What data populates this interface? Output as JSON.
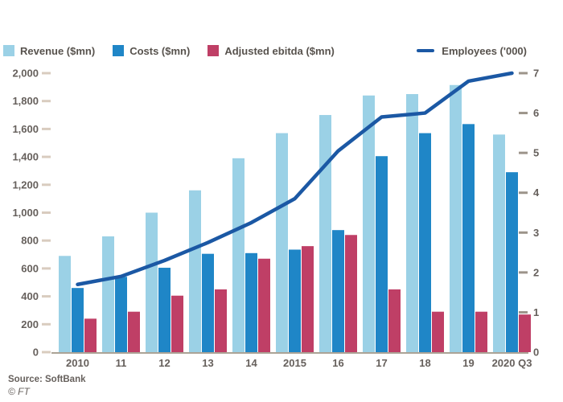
{
  "chart_data": {
    "type": "combo-bar-line",
    "categories": [
      "2010",
      "11",
      "12",
      "13",
      "14",
      "2015",
      "16",
      "17",
      "18",
      "19",
      "2020 Q3"
    ],
    "bar_series": [
      {
        "name": "Revenue ($mn)",
        "color": "#9bd1e6",
        "values": [
          690,
          830,
          1000,
          1160,
          1390,
          1570,
          1700,
          1840,
          1850,
          1915,
          1560
        ]
      },
      {
        "name": "Costs ($mn)",
        "color": "#1f86c7",
        "values": [
          460,
          540,
          605,
          705,
          710,
          735,
          875,
          1405,
          1570,
          1635,
          1290
        ]
      },
      {
        "name": "Adjusted ebitda ($mn)",
        "color": "#bf3f66",
        "values": [
          240,
          290,
          405,
          450,
          670,
          760,
          840,
          450,
          290,
          290,
          270
        ]
      }
    ],
    "line_series": {
      "name": "Employees ('000)",
      "color": "#1b58a4",
      "axis": "right",
      "values": [
        1.7,
        1.9,
        2.3,
        2.75,
        3.25,
        3.85,
        5.05,
        5.9,
        6.0,
        6.8,
        7.0
      ]
    },
    "left_axis": {
      "min": 0,
      "max": 2000,
      "step": 200,
      "tick_labels": [
        "0",
        "200",
        "400",
        "600",
        "800",
        "1,000",
        "1,200",
        "1,400",
        "1,600",
        "1,800",
        "2,000"
      ]
    },
    "right_axis": {
      "min": 0,
      "max": 7,
      "step": 1,
      "tick_labels": [
        "0",
        "1",
        "2",
        "3",
        "4",
        "5",
        "6",
        "7"
      ]
    },
    "grid": "off",
    "legend_position": "top",
    "source": "Source: SoftBank",
    "copyright": "© FT",
    "style": {
      "tick_text_color": "#66605c",
      "left_tick_dash_color": "#d9ccbf",
      "right_tick_dash_color": "#9c948a",
      "axis_line_color": "#aba396",
      "background": "#ffffff"
    }
  }
}
